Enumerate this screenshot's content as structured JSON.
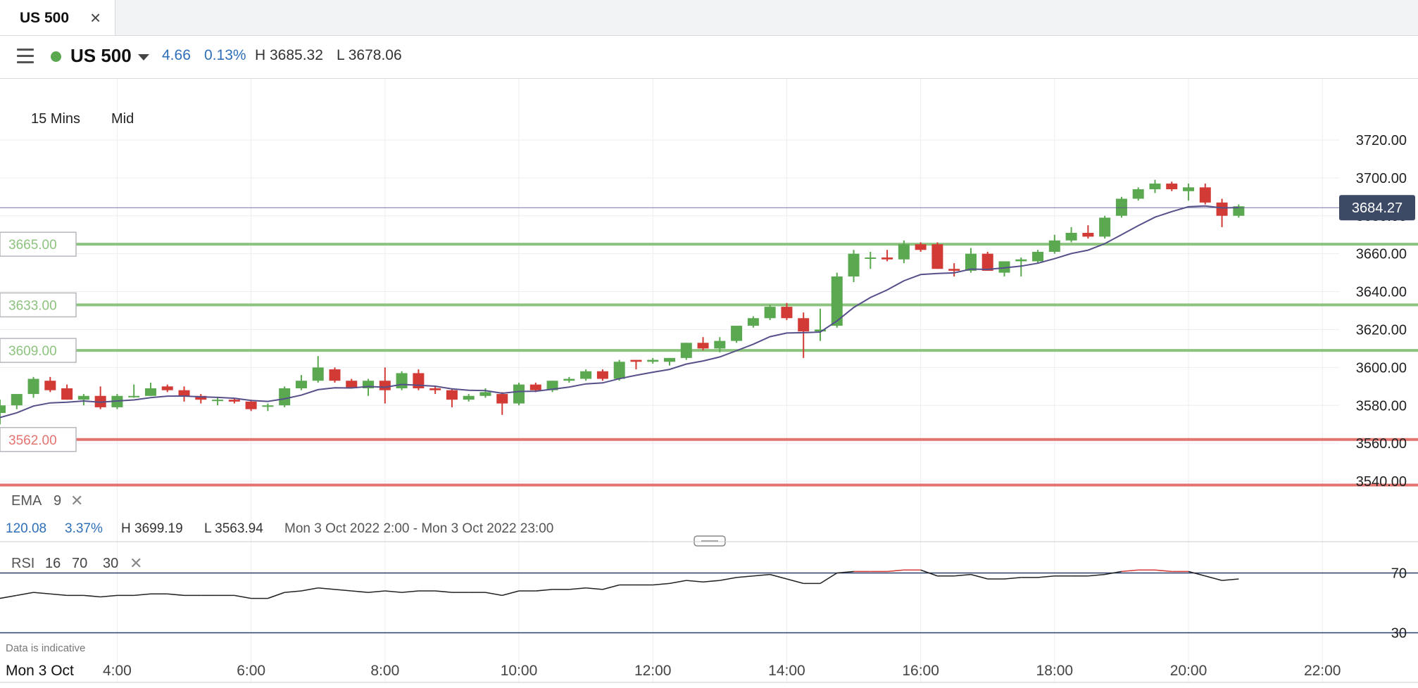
{
  "tab": {
    "title": "US 500",
    "close_symbol": "×"
  },
  "header": {
    "instrument": "US 500",
    "change": "4.66",
    "change_pct": "0.13%",
    "high": "H 3685.32",
    "low": "L 3678.06"
  },
  "toolbar": {
    "interval": "15 Mins",
    "price_type": "Mid"
  },
  "current_price": "3684.27",
  "level_lines": [
    {
      "label": "3665.00",
      "value": 3665,
      "color": "#8cc37e"
    },
    {
      "label": "3633.00",
      "value": 3633,
      "color": "#8cc37e"
    },
    {
      "label": "3609.00",
      "value": 3609,
      "color": "#8cc37e"
    },
    {
      "label": "3562.00",
      "value": 3562,
      "color": "#e3736f"
    },
    {
      "label": "",
      "value": 3538,
      "color": "#e3736f"
    }
  ],
  "ema": {
    "label": "EMA",
    "period": "9"
  },
  "summary": {
    "change": "120.08",
    "change_pct": "3.37%",
    "high": "H 3699.19",
    "low": "L 3563.94",
    "range": "Mon 3 Oct 2022 2:00 - Mon 3 Oct 2022 23:00"
  },
  "rsi": {
    "label": "RSI",
    "period": "16",
    "upper": "70",
    "lower": "30"
  },
  "disclaimer": "Data is indicative",
  "colors": {
    "up": "#5aa84f",
    "down": "#d23b35",
    "ema": "#55508a",
    "rsi": "#222222",
    "rsi_over": "#d23b35"
  },
  "chart_data": {
    "type": "candlestick",
    "price_ylim": [
      3530,
      3730
    ],
    "price_ticks": [
      "3720.00",
      "3700.00",
      "3680.00",
      "3660.00",
      "3640.00",
      "3620.00",
      "3600.00",
      "3580.00",
      "3560.00",
      "3540.00"
    ],
    "x_ticks": [
      "Mon 3 Oct",
      "4:00",
      "6:00",
      "8:00",
      "10:00",
      "12:00",
      "14:00",
      "16:00",
      "18:00",
      "20:00",
      "22:00"
    ],
    "x_range_hours": [
      2.25,
      22.25
    ],
    "candles": [
      {
        "t": 2.0,
        "o": 3567,
        "h": 3573,
        "l": 3562,
        "c": 3572
      },
      {
        "t": 2.25,
        "o": 3576,
        "h": 3583,
        "l": 3570,
        "c": 3580
      },
      {
        "t": 2.5,
        "o": 3580,
        "h": 3586,
        "l": 3578,
        "c": 3586
      },
      {
        "t": 2.75,
        "o": 3586,
        "h": 3595,
        "l": 3584,
        "c": 3594
      },
      {
        "t": 3.0,
        "o": 3593,
        "h": 3595,
        "l": 3587,
        "c": 3588
      },
      {
        "t": 3.25,
        "o": 3589,
        "h": 3591,
        "l": 3583,
        "c": 3583
      },
      {
        "t": 3.5,
        "o": 3583,
        "h": 3586,
        "l": 3580,
        "c": 3585
      },
      {
        "t": 3.75,
        "o": 3585,
        "h": 3590,
        "l": 3578,
        "c": 3579
      },
      {
        "t": 4.0,
        "o": 3579,
        "h": 3586,
        "l": 3578,
        "c": 3585
      },
      {
        "t": 4.25,
        "o": 3585,
        "h": 3591,
        "l": 3584,
        "c": 3585
      },
      {
        "t": 4.5,
        "o": 3585,
        "h": 3592,
        "l": 3585,
        "c": 3589
      },
      {
        "t": 4.75,
        "o": 3590,
        "h": 3591,
        "l": 3587,
        "c": 3588
      },
      {
        "t": 5.0,
        "o": 3588,
        "h": 3590,
        "l": 3582,
        "c": 3585
      },
      {
        "t": 5.25,
        "o": 3585,
        "h": 3586,
        "l": 3581,
        "c": 3583
      },
      {
        "t": 5.5,
        "o": 3583,
        "h": 3584,
        "l": 3580,
        "c": 3583
      },
      {
        "t": 5.75,
        "o": 3583,
        "h": 3584,
        "l": 3581,
        "c": 3582
      },
      {
        "t": 6.0,
        "o": 3582,
        "h": 3583,
        "l": 3577,
        "c": 3578
      },
      {
        "t": 6.25,
        "o": 3580,
        "h": 3581,
        "l": 3577,
        "c": 3580
      },
      {
        "t": 6.5,
        "o": 3580,
        "h": 3590,
        "l": 3579,
        "c": 3589
      },
      {
        "t": 6.75,
        "o": 3589,
        "h": 3596,
        "l": 3588,
        "c": 3593
      },
      {
        "t": 7.0,
        "o": 3593,
        "h": 3606,
        "l": 3592,
        "c": 3600
      },
      {
        "t": 7.25,
        "o": 3599,
        "h": 3600,
        "l": 3592,
        "c": 3593
      },
      {
        "t": 7.5,
        "o": 3593,
        "h": 3594,
        "l": 3589,
        "c": 3589
      },
      {
        "t": 7.75,
        "o": 3589,
        "h": 3594,
        "l": 3585,
        "c": 3593
      },
      {
        "t": 8.0,
        "o": 3593,
        "h": 3600,
        "l": 3581,
        "c": 3588
      },
      {
        "t": 8.25,
        "o": 3589,
        "h": 3598,
        "l": 3588,
        "c": 3597
      },
      {
        "t": 8.5,
        "o": 3597,
        "h": 3599,
        "l": 3588,
        "c": 3589
      },
      {
        "t": 8.75,
        "o": 3589,
        "h": 3590,
        "l": 3586,
        "c": 3588
      },
      {
        "t": 9.0,
        "o": 3588,
        "h": 3589,
        "l": 3579,
        "c": 3583
      },
      {
        "t": 9.25,
        "o": 3583,
        "h": 3586,
        "l": 3582,
        "c": 3585
      },
      {
        "t": 9.5,
        "o": 3585,
        "h": 3589,
        "l": 3584,
        "c": 3587
      },
      {
        "t": 9.75,
        "o": 3586,
        "h": 3587,
        "l": 3575,
        "c": 3581
      },
      {
        "t": 10.0,
        "o": 3581,
        "h": 3592,
        "l": 3580,
        "c": 3591
      },
      {
        "t": 10.25,
        "o": 3591,
        "h": 3592,
        "l": 3587,
        "c": 3588
      },
      {
        "t": 10.5,
        "o": 3588,
        "h": 3593,
        "l": 3587,
        "c": 3593
      },
      {
        "t": 10.75,
        "o": 3593,
        "h": 3595,
        "l": 3592,
        "c": 3594
      },
      {
        "t": 11.0,
        "o": 3594,
        "h": 3599,
        "l": 3593,
        "c": 3598
      },
      {
        "t": 11.25,
        "o": 3598,
        "h": 3599,
        "l": 3593,
        "c": 3594
      },
      {
        "t": 11.5,
        "o": 3594,
        "h": 3604,
        "l": 3593,
        "c": 3603
      },
      {
        "t": 11.75,
        "o": 3604,
        "h": 3604,
        "l": 3599,
        "c": 3603
      },
      {
        "t": 12.0,
        "o": 3603,
        "h": 3605,
        "l": 3602,
        "c": 3604
      },
      {
        "t": 12.25,
        "o": 3603,
        "h": 3605,
        "l": 3601,
        "c": 3605
      },
      {
        "t": 12.5,
        "o": 3605,
        "h": 3613,
        "l": 3604,
        "c": 3613
      },
      {
        "t": 12.75,
        "o": 3613,
        "h": 3616,
        "l": 3609,
        "c": 3610
      },
      {
        "t": 13.0,
        "o": 3610,
        "h": 3616,
        "l": 3608,
        "c": 3614
      },
      {
        "t": 13.25,
        "o": 3614,
        "h": 3622,
        "l": 3613,
        "c": 3622
      },
      {
        "t": 13.5,
        "o": 3622,
        "h": 3627,
        "l": 3621,
        "c": 3626
      },
      {
        "t": 13.75,
        "o": 3626,
        "h": 3633,
        "l": 3625,
        "c": 3632
      },
      {
        "t": 14.0,
        "o": 3632,
        "h": 3634,
        "l": 3625,
        "c": 3626
      },
      {
        "t": 14.25,
        "o": 3626,
        "h": 3629,
        "l": 3605,
        "c": 3619
      },
      {
        "t": 14.5,
        "o": 3619,
        "h": 3631,
        "l": 3614,
        "c": 3620
      },
      {
        "t": 14.75,
        "o": 3622,
        "h": 3650,
        "l": 3621,
        "c": 3648
      },
      {
        "t": 15.0,
        "o": 3648,
        "h": 3662,
        "l": 3645,
        "c": 3660
      },
      {
        "t": 15.25,
        "o": 3658,
        "h": 3661,
        "l": 3652,
        "c": 3658
      },
      {
        "t": 15.5,
        "o": 3658,
        "h": 3662,
        "l": 3656,
        "c": 3657
      },
      {
        "t": 15.75,
        "o": 3657,
        "h": 3667,
        "l": 3655,
        "c": 3665
      },
      {
        "t": 16.0,
        "o": 3665,
        "h": 3666,
        "l": 3661,
        "c": 3662
      },
      {
        "t": 16.25,
        "o": 3665,
        "h": 3666,
        "l": 3652,
        "c": 3652
      },
      {
        "t": 16.5,
        "o": 3652,
        "h": 3655,
        "l": 3648,
        "c": 3651
      },
      {
        "t": 16.75,
        "o": 3651,
        "h": 3663,
        "l": 3650,
        "c": 3660
      },
      {
        "t": 17.0,
        "o": 3660,
        "h": 3661,
        "l": 3651,
        "c": 3651
      },
      {
        "t": 17.25,
        "o": 3650,
        "h": 3656,
        "l": 3648,
        "c": 3656
      },
      {
        "t": 17.5,
        "o": 3656,
        "h": 3658,
        "l": 3648,
        "c": 3657
      },
      {
        "t": 17.75,
        "o": 3656,
        "h": 3662,
        "l": 3655,
        "c": 3661
      },
      {
        "t": 18.0,
        "o": 3661,
        "h": 3670,
        "l": 3660,
        "c": 3667
      },
      {
        "t": 18.25,
        "o": 3667,
        "h": 3674,
        "l": 3666,
        "c": 3671
      },
      {
        "t": 18.5,
        "o": 3671,
        "h": 3675,
        "l": 3668,
        "c": 3669
      },
      {
        "t": 18.75,
        "o": 3669,
        "h": 3680,
        "l": 3668,
        "c": 3679
      },
      {
        "t": 19.0,
        "o": 3680,
        "h": 3690,
        "l": 3679,
        "c": 3689
      },
      {
        "t": 19.25,
        "o": 3689,
        "h": 3695,
        "l": 3688,
        "c": 3694
      },
      {
        "t": 19.5,
        "o": 3694,
        "h": 3699,
        "l": 3692,
        "c": 3697
      },
      {
        "t": 19.75,
        "o": 3697,
        "h": 3698,
        "l": 3693,
        "c": 3694
      },
      {
        "t": 20.0,
        "o": 3693,
        "h": 3697,
        "l": 3688,
        "c": 3695
      },
      {
        "t": 20.25,
        "o": 3695,
        "h": 3697,
        "l": 3686,
        "c": 3687
      },
      {
        "t": 20.5,
        "o": 3687,
        "h": 3689,
        "l": 3674,
        "c": 3680
      },
      {
        "t": 20.75,
        "o": 3680,
        "h": 3686,
        "l": 3679,
        "c": 3685
      }
    ],
    "ema_period": 9,
    "rsi_ylim": [
      10,
      90
    ],
    "rsi_values": [
      50,
      53,
      55,
      57,
      56,
      55,
      55,
      54,
      55,
      55,
      56,
      56,
      55,
      55,
      55,
      55,
      53,
      53,
      57,
      58,
      60,
      59,
      58,
      57,
      58,
      57,
      58,
      58,
      57,
      57,
      57,
      55,
      58,
      58,
      59,
      59,
      60,
      59,
      62,
      62,
      62,
      63,
      65,
      64,
      65,
      67,
      68,
      69,
      66,
      63,
      63,
      70,
      71,
      71,
      71,
      72,
      72,
      68,
      68,
      69,
      66,
      66,
      67,
      67,
      68,
      68,
      68,
      69,
      71,
      72,
      72,
      71,
      71,
      68,
      65,
      66
    ]
  }
}
